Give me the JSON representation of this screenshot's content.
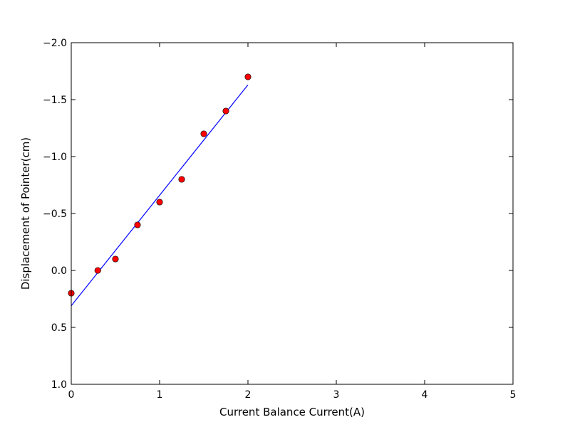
{
  "chart_data": {
    "type": "scatter",
    "title": "",
    "xlabel": "Current Balance Current(A)",
    "ylabel": "Displacement of Pointer(cm)",
    "xlim": [
      0,
      5
    ],
    "ylim": [
      1.0,
      -2.0
    ],
    "y_inverted": true,
    "grid": false,
    "xticks": [
      0,
      1,
      2,
      3,
      4,
      5
    ],
    "xtick_labels": [
      "0",
      "1",
      "2",
      "3",
      "4",
      "5"
    ],
    "yticks": [
      -2.0,
      -1.5,
      -1.0,
      -0.5,
      0.0,
      0.5,
      1.0
    ],
    "ytick_labels": [
      "−2.0",
      "−1.5",
      "−1.0",
      "−0.5",
      "0.0",
      "0.5",
      "1.0"
    ],
    "series": [
      {
        "kind": "points",
        "color": "#ff0000",
        "edge_color": "#000000",
        "x": [
          0,
          0.3,
          0.5,
          0.75,
          1.0,
          1.25,
          1.5,
          1.75,
          2.0
        ],
        "y": [
          0.2,
          0.0,
          -0.1,
          -0.4,
          -0.6,
          -0.8,
          -1.2,
          -1.4,
          -1.7
        ]
      },
      {
        "kind": "fit-line",
        "color": "#0000ff",
        "x": [
          0,
          2.0
        ],
        "y": [
          0.31,
          -1.63
        ]
      }
    ]
  }
}
